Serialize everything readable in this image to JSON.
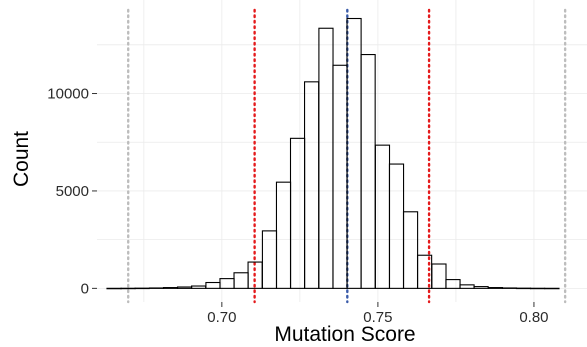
{
  "chart_data": {
    "type": "bar",
    "xlabel": "Mutation Score",
    "ylabel": "Count",
    "xlim": [
      0.66,
      0.817
    ],
    "ylim": [
      -700,
      14800
    ],
    "x_ticks": [
      {
        "value": 0.7,
        "label": "0.70"
      },
      {
        "value": 0.75,
        "label": "0.75"
      },
      {
        "value": 0.8,
        "label": "0.80"
      }
    ],
    "y_ticks": [
      {
        "value": 0,
        "label": "0"
      },
      {
        "value": 5000,
        "label": "5000"
      },
      {
        "value": 10000,
        "label": "10000"
      }
    ],
    "bin_width": 0.004524,
    "bins": [
      {
        "x0": 0.6632,
        "count": 2
      },
      {
        "x0": 0.6677,
        "count": 5
      },
      {
        "x0": 0.6722,
        "count": 10
      },
      {
        "x0": 0.6768,
        "count": 20
      },
      {
        "x0": 0.6813,
        "count": 40
      },
      {
        "x0": 0.6858,
        "count": 70
      },
      {
        "x0": 0.6903,
        "count": 120
      },
      {
        "x0": 0.6949,
        "count": 300
      },
      {
        "x0": 0.6994,
        "count": 500
      },
      {
        "x0": 0.7039,
        "count": 800
      },
      {
        "x0": 0.7084,
        "count": 1350
      },
      {
        "x0": 0.713,
        "count": 2950
      },
      {
        "x0": 0.7175,
        "count": 5450
      },
      {
        "x0": 0.722,
        "count": 7700
      },
      {
        "x0": 0.7265,
        "count": 10600
      },
      {
        "x0": 0.7311,
        "count": 13350
      },
      {
        "x0": 0.7356,
        "count": 11450
      },
      {
        "x0": 0.7401,
        "count": 13850
      },
      {
        "x0": 0.7446,
        "count": 12000
      },
      {
        "x0": 0.7492,
        "count": 7350
      },
      {
        "x0": 0.7537,
        "count": 6380
      },
      {
        "x0": 0.7582,
        "count": 3930
      },
      {
        "x0": 0.7627,
        "count": 1700
      },
      {
        "x0": 0.7673,
        "count": 1250
      },
      {
        "x0": 0.7718,
        "count": 450
      },
      {
        "x0": 0.7763,
        "count": 180
      },
      {
        "x0": 0.7808,
        "count": 90
      },
      {
        "x0": 0.7854,
        "count": 40
      },
      {
        "x0": 0.7899,
        "count": 20
      },
      {
        "x0": 0.7944,
        "count": 10
      },
      {
        "x0": 0.7989,
        "count": 5
      },
      {
        "x0": 0.8035,
        "count": 3
      }
    ],
    "reference_lines": [
      {
        "x": 0.67,
        "color": "#bdbdbd",
        "style": "dotted"
      },
      {
        "x": 0.7105,
        "color": "#e41a1c",
        "style": "dotted"
      },
      {
        "x": 0.7402,
        "color": "#3a5ba9",
        "style": "dotted"
      },
      {
        "x": 0.7664,
        "color": "#e41a1c",
        "style": "dotted"
      },
      {
        "x": 0.81,
        "color": "#bdbdbd",
        "style": "dotted"
      }
    ],
    "grid": true,
    "bar_fill": "#ffffff",
    "bar_stroke": "#000000",
    "grid_color": "#ebebeb"
  }
}
